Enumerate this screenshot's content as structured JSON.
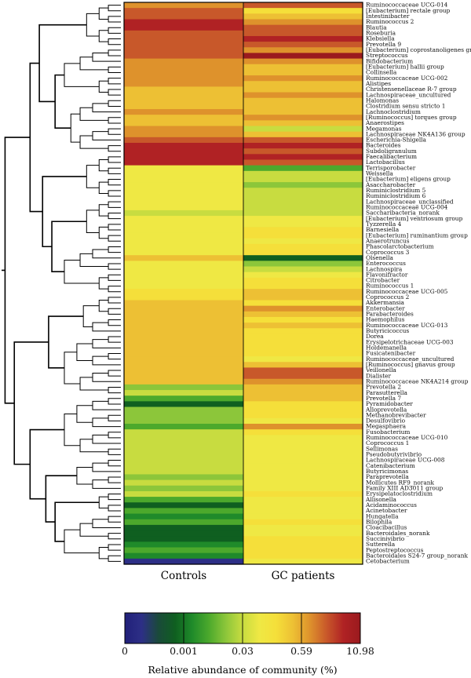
{
  "chart_data": {
    "type": "heatmap",
    "title": "",
    "columns": [
      "Controls",
      "GC patients"
    ],
    "colorbar": {
      "label": "Relative abundance of community (%)",
      "tick_labels": [
        "0",
        "0.001",
        "0.03",
        "0.59",
        "10.98"
      ],
      "colors": [
        "#21207a",
        "#2d2f86",
        "#1a4a3a",
        "#0f5f20",
        "#1f8a2a",
        "#4ca92c",
        "#8cc63a",
        "#c8dc40",
        "#efe844",
        "#f5df3a",
        "#edc034",
        "#de922c",
        "#c8582a",
        "#b02224",
        "#9a1a1e"
      ]
    },
    "rows": [
      "Ruminococcaceae UCG-014",
      "[Eubacterium] rectale group",
      "Intestinibacter",
      "Ruminococcus 2",
      "Blautia",
      "Roseburia",
      "Klebsiella",
      "Prevotella 9",
      "[Eubacterium] coprostanoligenes group",
      "Streptococcus",
      "Bifidobacterium",
      "[Eubacterium] hallii group",
      "Collinsella",
      "Ruminococcaceae UCG-002",
      "Alistipes",
      "Christensenellaceae R-7 group",
      "Lachnospiraceae_uncultured",
      "Halomonas",
      "Clostridium sensu stricto 1",
      "Lachnoclostridium",
      "[Ruminococcus] torques group",
      "Anaerostipes",
      "Megamonas",
      "Lachnospiraceae NK4A136 group",
      "Escherichia-Shigella",
      "Bacteroides",
      "Subdoligranulum",
      "Faecalibacterium",
      "Lactobacillus",
      "Terrisporobacter",
      "Weissella",
      "[Eubacterium] eligens group",
      "Asaccharobacter",
      "Ruminiclostridium 5",
      "Ruminiclostridium 6",
      "Lachnospiraceae_unclassified",
      "Ruminococcaceae UCG-004",
      "Saccharibacteria_norank",
      "[Eubacterium] ventriosum group",
      "Tyzzerella 4",
      "Barnesiella",
      "[Eubacterium] ruminantium group",
      "Anaerotruncus",
      "Phascolarctobacterium",
      "Coprococcus 3",
      "Olsenella",
      "Enterococcus",
      "Lachnospira",
      "Flavonifractor",
      "Citrobacter",
      "Ruminococcus 1",
      "Ruminococcaceae UCG-005",
      "Coprococcus 2",
      "Akkermansia",
      "Enterobacter",
      "Parabacteroides",
      "Haemophilus",
      "Ruminococcaceae UCG-013",
      "Butyricicoccus",
      "Dorea",
      "Erysipelotrichaceae UCG-003",
      "Holdemanella",
      "Fusicatenibacter",
      "Ruminococcaceae_uncultured",
      "[Ruminococcus] gnavus group",
      "Veillonella",
      "Dialister",
      "Ruminococcaceae NK4A214 group",
      "Prevotella 2",
      "Parasutterella",
      "Prevotella 7",
      "Pyramidobacter",
      "Alloprevotella",
      "Methanobrevibacter",
      "Desulfovibrio",
      "Megasphaera",
      "Fusobacterium",
      "Ruminococcaceae UCG-010",
      "Coprococcus 1",
      "Sellimonas",
      "Pseudobutyrivibrio",
      "Lachnospiraceae UCG-008",
      "Catenibacterium",
      "Butyricimonas",
      "Paraprevotella",
      "Mollicutes RF9_norank",
      "Family XIII AD3011 group",
      "Erysipelatoclostridium",
      "Allisonella",
      "Acidaminococcus",
      "Acinetobacter",
      "Hungatella",
      "Bilophila",
      "Cloacibacillus",
      "Bacteroidales_norank",
      "Succinivibrio",
      "Sutterella",
      "Peptostreptococcus",
      "Bacteroidales S24-7 group_norank",
      "Cetobacterium"
    ],
    "levels_scale": "0 = lowest abundance (blue), 14 = highest abundance (red), index into colorbar.colors",
    "levels": [
      [
        11,
        12
      ],
      [
        12,
        9
      ],
      [
        12,
        10
      ],
      [
        13,
        11
      ],
      [
        13,
        12
      ],
      [
        12,
        12
      ],
      [
        12,
        13
      ],
      [
        12,
        12
      ],
      [
        12,
        11
      ],
      [
        12,
        14
      ],
      [
        11,
        11
      ],
      [
        11,
        10
      ],
      [
        11,
        10
      ],
      [
        11,
        11
      ],
      [
        11,
        10
      ],
      [
        10,
        10
      ],
      [
        10,
        11
      ],
      [
        10,
        10
      ],
      [
        10,
        10
      ],
      [
        11,
        10
      ],
      [
        10,
        11
      ],
      [
        10,
        10
      ],
      [
        11,
        7
      ],
      [
        11,
        10
      ],
      [
        12,
        12
      ],
      [
        13,
        13
      ],
      [
        13,
        12
      ],
      [
        13,
        13
      ],
      [
        13,
        12
      ],
      [
        8,
        5
      ],
      [
        8,
        7
      ],
      [
        8,
        7
      ],
      [
        8,
        6
      ],
      [
        8,
        7
      ],
      [
        8,
        7
      ],
      [
        8,
        7
      ],
      [
        8,
        7
      ],
      [
        7,
        7
      ],
      [
        8,
        8
      ],
      [
        8,
        8
      ],
      [
        8,
        9
      ],
      [
        8,
        9
      ],
      [
        8,
        8
      ],
      [
        8,
        9
      ],
      [
        8,
        9
      ],
      [
        10,
        3
      ],
      [
        8,
        6
      ],
      [
        8,
        7
      ],
      [
        8,
        8
      ],
      [
        8,
        9
      ],
      [
        8,
        9
      ],
      [
        9,
        10
      ],
      [
        9,
        10
      ],
      [
        10,
        9
      ],
      [
        10,
        11
      ],
      [
        10,
        10
      ],
      [
        10,
        9
      ],
      [
        10,
        10
      ],
      [
        10,
        9
      ],
      [
        10,
        9
      ],
      [
        10,
        9
      ],
      [
        10,
        9
      ],
      [
        10,
        9
      ],
      [
        10,
        8
      ],
      [
        10,
        10
      ],
      [
        10,
        12
      ],
      [
        10,
        12
      ],
      [
        10,
        11
      ],
      [
        6,
        10
      ],
      [
        7,
        10
      ],
      [
        5,
        10
      ],
      [
        3,
        9
      ],
      [
        6,
        9
      ],
      [
        6,
        9
      ],
      [
        6,
        8
      ],
      [
        5,
        11
      ],
      [
        7,
        9
      ],
      [
        7,
        8
      ],
      [
        7,
        8
      ],
      [
        7,
        8
      ],
      [
        7,
        8
      ],
      [
        7,
        8
      ],
      [
        7,
        8
      ],
      [
        7,
        8
      ],
      [
        6,
        8
      ],
      [
        7,
        8
      ],
      [
        6,
        8
      ],
      [
        7,
        9
      ],
      [
        5,
        8
      ],
      [
        3,
        8
      ],
      [
        5,
        8
      ],
      [
        4,
        8
      ],
      [
        5,
        9
      ],
      [
        3,
        8
      ],
      [
        3,
        8
      ],
      [
        3,
        9
      ],
      [
        4,
        9
      ],
      [
        5,
        9
      ],
      [
        4,
        9
      ],
      [
        1,
        8
      ]
    ],
    "dendrogram": "hierarchical clustering tree of rows, drawn at left"
  }
}
